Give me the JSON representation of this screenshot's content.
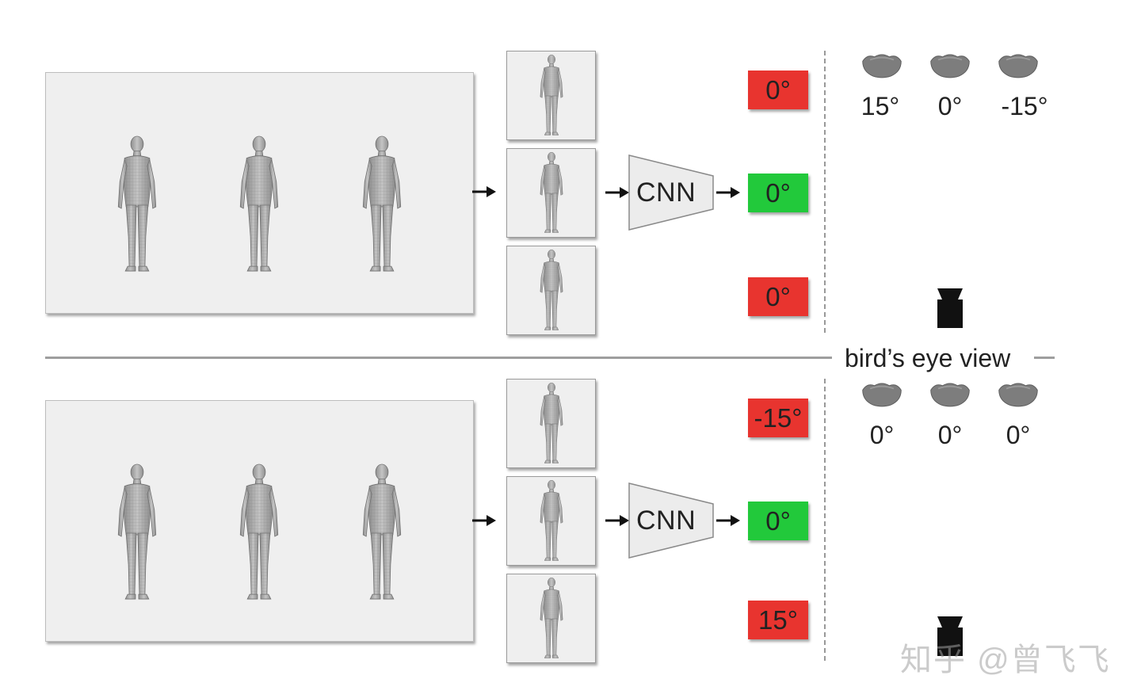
{
  "rows": [
    {
      "cnn_label": "CNN",
      "badges": [
        {
          "text": "0°",
          "color": "#e8342f"
        },
        {
          "text": "0°",
          "color": "#22c93b"
        },
        {
          "text": "0°",
          "color": "#e8342f"
        }
      ],
      "head_angles": [
        "15°",
        "0°",
        "-15°"
      ]
    },
    {
      "cnn_label": "CNN",
      "badges": [
        {
          "text": "-15°",
          "color": "#e8342f"
        },
        {
          "text": "0°",
          "color": "#22c93b"
        },
        {
          "text": "15°",
          "color": "#e8342f"
        }
      ],
      "head_angles": [
        "0°",
        "0°",
        "0°"
      ]
    }
  ],
  "birds_eye_label": "bird’s eye view",
  "watermark": "知乎 @曾飞飞"
}
